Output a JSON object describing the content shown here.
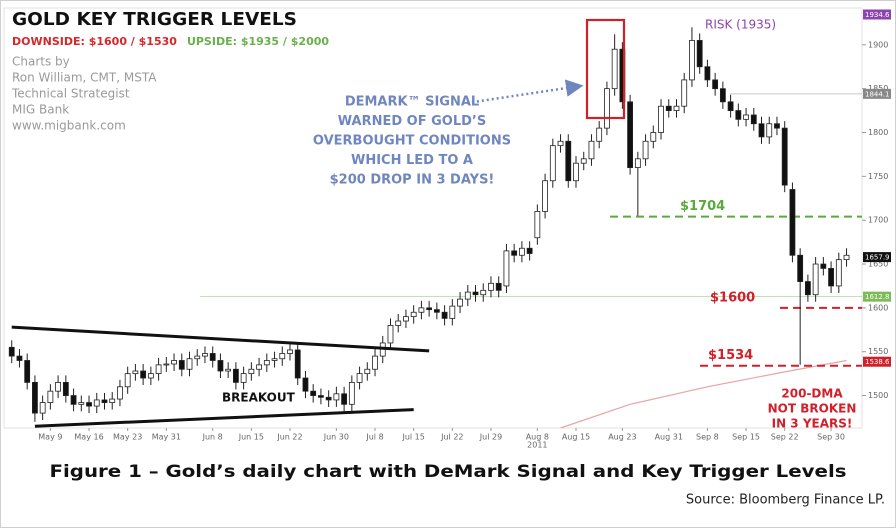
{
  "chart_data": {
    "type": "candlestick",
    "title": "GOLD KEY TRIGGER LEVELS",
    "subtitle": [
      {
        "text": "DOWNSIDE: $1600 / $1530",
        "color": "#d9262b"
      },
      {
        "text": "UPSIDE: $1935 / $2000",
        "color": "#6ab04c"
      }
    ],
    "credits": [
      "Charts by",
      "Ron William, CMT, MSTA",
      "Technical Strategist",
      "MIG Bank",
      "www.migbank.com"
    ],
    "open": [
      1555,
      1545,
      1540,
      1515,
      1480,
      1492,
      1505,
      1515,
      1500,
      1490,
      1492,
      1488,
      1495,
      1492,
      1496,
      1510,
      1525,
      1528,
      1520,
      1525,
      1535,
      1536,
      1540,
      1530,
      1542,
      1545,
      1548,
      1540,
      1528,
      1530,
      1515,
      1525,
      1530,
      1535,
      1540,
      1542,
      1548,
      1552,
      1520,
      1505,
      1500,
      1498,
      1495,
      1502,
      1490,
      1515,
      1525,
      1530,
      1545,
      1560,
      1580,
      1585,
      1590,
      1595,
      1600,
      1598,
      1595,
      1588,
      1602,
      1610,
      1618,
      1615,
      1620,
      1628,
      1625,
      1665,
      1660,
      1668,
      1680,
      1710,
      1745,
      1785,
      1790,
      1745,
      1765,
      1770,
      1790,
      1805,
      1850,
      1895,
      1835,
      1760,
      1770,
      1790,
      1800,
      1830,
      1825,
      1830,
      1860,
      1905,
      1875,
      1860,
      1850,
      1835,
      1825,
      1815,
      1820,
      1810,
      1795,
      1810,
      1805,
      1735,
      1660,
      1630,
      1615,
      1650,
      1645,
      1625,
      1655
    ],
    "high": [
      1563,
      1553,
      1548,
      1523,
      1500,
      1513,
      1523,
      1523,
      1508,
      1500,
      1500,
      1503,
      1503,
      1504,
      1518,
      1533,
      1536,
      1536,
      1533,
      1543,
      1544,
      1548,
      1548,
      1550,
      1553,
      1556,
      1556,
      1548,
      1538,
      1538,
      1533,
      1538,
      1543,
      1548,
      1550,
      1556,
      1560,
      1560,
      1528,
      1513,
      1508,
      1506,
      1510,
      1510,
      1523,
      1533,
      1538,
      1553,
      1568,
      1588,
      1593,
      1598,
      1603,
      1608,
      1608,
      1606,
      1603,
      1610,
      1618,
      1626,
      1626,
      1628,
      1636,
      1636,
      1673,
      1673,
      1676,
      1676,
      1718,
      1753,
      1793,
      1798,
      1798,
      1773,
      1778,
      1798,
      1813,
      1858,
      1912,
      1903,
      1843,
      1778,
      1798,
      1808,
      1838,
      1838,
      1838,
      1868,
      1920,
      1913,
      1883,
      1868,
      1858,
      1843,
      1833,
      1828,
      1828,
      1818,
      1818,
      1818,
      1813,
      1743,
      1668,
      1638,
      1658,
      1658,
      1653,
      1663,
      1668
    ],
    "low": [
      1537,
      1532,
      1507,
      1470,
      1472,
      1484,
      1497,
      1492,
      1482,
      1482,
      1480,
      1480,
      1484,
      1484,
      1488,
      1502,
      1517,
      1512,
      1512,
      1517,
      1527,
      1528,
      1522,
      1522,
      1534,
      1537,
      1532,
      1520,
      1520,
      1507,
      1507,
      1517,
      1522,
      1527,
      1532,
      1534,
      1540,
      1512,
      1497,
      1492,
      1490,
      1487,
      1487,
      1482,
      1482,
      1507,
      1517,
      1522,
      1537,
      1552,
      1572,
      1577,
      1582,
      1587,
      1590,
      1587,
      1580,
      1580,
      1594,
      1602,
      1607,
      1607,
      1612,
      1612,
      1617,
      1652,
      1652,
      1654,
      1672,
      1702,
      1737,
      1777,
      1737,
      1737,
      1757,
      1762,
      1782,
      1797,
      1842,
      1827,
      1752,
      1705,
      1762,
      1782,
      1792,
      1817,
      1817,
      1822,
      1852,
      1867,
      1852,
      1842,
      1827,
      1817,
      1807,
      1807,
      1802,
      1787,
      1787,
      1797,
      1732,
      1652,
      1535,
      1607,
      1607,
      1637,
      1617,
      1617,
      1647
    ],
    "close": [
      1545,
      1540,
      1515,
      1480,
      1492,
      1505,
      1515,
      1500,
      1490,
      1492,
      1488,
      1495,
      1492,
      1496,
      1510,
      1525,
      1528,
      1520,
      1525,
      1535,
      1536,
      1540,
      1530,
      1542,
      1545,
      1548,
      1540,
      1528,
      1530,
      1515,
      1525,
      1530,
      1535,
      1540,
      1542,
      1548,
      1552,
      1520,
      1505,
      1500,
      1498,
      1495,
      1502,
      1490,
      1515,
      1525,
      1530,
      1545,
      1560,
      1580,
      1585,
      1590,
      1595,
      1600,
      1598,
      1595,
      1588,
      1602,
      1610,
      1618,
      1615,
      1620,
      1628,
      1620,
      1665,
      1660,
      1668,
      1662,
      1710,
      1745,
      1785,
      1790,
      1745,
      1765,
      1770,
      1790,
      1805,
      1850,
      1895,
      1835,
      1760,
      1770,
      1790,
      1800,
      1830,
      1825,
      1830,
      1860,
      1905,
      1875,
      1860,
      1850,
      1835,
      1825,
      1815,
      1820,
      1810,
      1795,
      1810,
      1805,
      1740,
      1660,
      1630,
      1615,
      1650,
      1645,
      1625,
      1655,
      1660
    ],
    "up_color": "#ffffff",
    "down_color": "#111111",
    "ylim": [
      1463,
      1942
    ],
    "yticks": [
      1500,
      1550,
      1600,
      1650,
      1700,
      1750,
      1800,
      1850,
      1900
    ],
    "xlim": [
      -1,
      110
    ],
    "xticks": [
      {
        "value": 5,
        "label": "May 9"
      },
      {
        "value": 10,
        "label": "May 16"
      },
      {
        "value": 15,
        "label": "May 23"
      },
      {
        "value": 20,
        "label": "May 31"
      },
      {
        "value": 26,
        "label": "Jun 8"
      },
      {
        "value": 31,
        "label": "Jun 15"
      },
      {
        "value": 36,
        "label": "Jun 22"
      },
      {
        "value": 42,
        "label": "Jun 30"
      },
      {
        "value": 47,
        "label": "Jul 8"
      },
      {
        "value": 52,
        "label": "Jul 15"
      },
      {
        "value": 57,
        "label": "Jul 22"
      },
      {
        "value": 62,
        "label": "Jul 29"
      },
      {
        "value": 68,
        "label": "Aug 8"
      },
      {
        "value": 73,
        "label": "Aug 15"
      },
      {
        "value": 79,
        "label": "Aug 23"
      },
      {
        "value": 85,
        "label": "Aug 31"
      },
      {
        "value": 90,
        "label": "Sep 8"
      },
      {
        "value": 95,
        "label": "Sep 15"
      },
      {
        "value": 100,
        "label": "Sep 22"
      },
      {
        "value": 106,
        "label": "Sep 30"
      }
    ],
    "year_label": {
      "value": 68,
      "label": "2011"
    },
    "levels": [
      {
        "value": 1704,
        "label": "$1704",
        "color": "#5aaa3c"
      },
      {
        "value": 1600,
        "label": "$1600",
        "color": "#d0202a"
      },
      {
        "value": 1534,
        "label": "$1534",
        "color": "#d0202a"
      }
    ],
    "price_tags": [
      {
        "value": 1934.6,
        "color": "#8e44ad"
      },
      {
        "value": 1844.1,
        "color": "#888888"
      },
      {
        "value": 1657.9,
        "color": "#111111"
      },
      {
        "value": 1612.8,
        "color": "#7dbb5a"
      },
      {
        "value": 1538.6,
        "color": "#d0202a"
      }
    ],
    "dma": {
      "x": [
        71,
        80,
        90,
        100,
        108
      ],
      "values": [
        1463,
        1490,
        1510,
        1527,
        1540
      ],
      "color": "#e8a4a4"
    },
    "trendlines": [
      {
        "x": [
          0,
          54
        ],
        "values": [
          1578,
          1551
        ]
      },
      {
        "x": [
          3,
          52
        ],
        "values": [
          1465,
          1484
        ]
      }
    ],
    "annotations": {
      "demark": [
        "DEMARK™ SIGNAL",
        "WARNED OF GOLD’S",
        "OVERBOUGHT CONDITIONS",
        "WHICH LED TO A",
        "$200 DROP IN 3 DAYS!"
      ],
      "risk": "RISK (1935)",
      "breakout": "BREAKOUT",
      "dma_note": [
        "200-DMA",
        "NOT BROKEN",
        "IN 3 YEARS!"
      ]
    }
  },
  "caption": "Figure 1 – Gold’s daily chart with DeMark Signal and Key Trigger Levels",
  "source": "Source: Bloomberg Finance LP."
}
